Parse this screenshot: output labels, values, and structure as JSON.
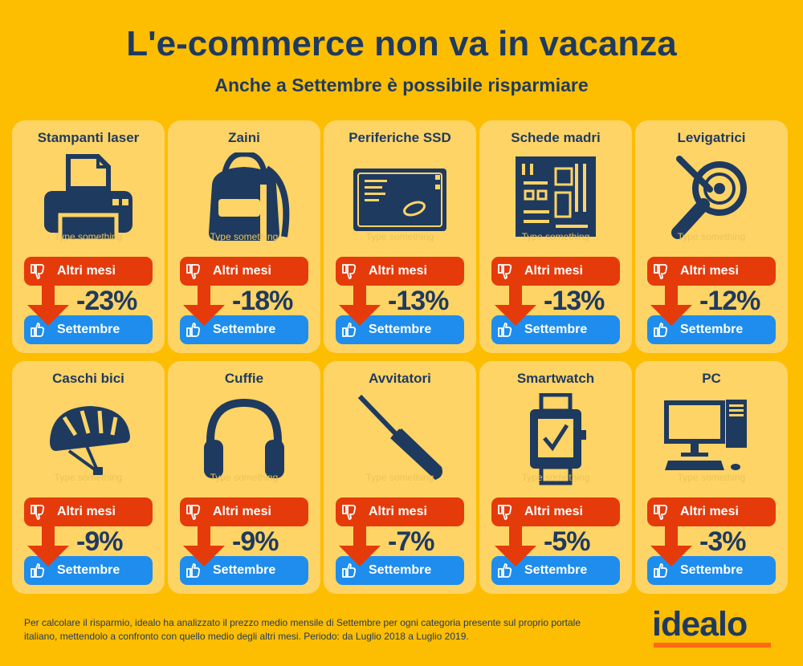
{
  "header": {
    "title": "L'e-commerce non va in vacanza",
    "subtitle": "Anche a Settembre è possibile risparmiare"
  },
  "labels": {
    "other_months": "Altri mesi",
    "september": "Settembre",
    "placeholder": "Type something"
  },
  "colors": {
    "background": "#FDBD00",
    "card": "#FED466",
    "red": "#E53B0B",
    "blue": "#1E8DED",
    "navy": "#1F3A5F",
    "logo_underline": "#FF6A13"
  },
  "cards": [
    {
      "title": "Stampanti laser",
      "saving": "-23%",
      "icon": "printer-icon"
    },
    {
      "title": "Zaini",
      "saving": "-18%",
      "icon": "backpack-icon"
    },
    {
      "title": "Periferiche SSD",
      "saving": "-13%",
      "icon": "ssd-icon"
    },
    {
      "title": "Schede madri",
      "saving": "-13%",
      "icon": "motherboard-icon"
    },
    {
      "title": "Levigatrici",
      "saving": "-12%",
      "icon": "sander-icon"
    },
    {
      "title": "Caschi bici",
      "saving": "-9%",
      "icon": "bike-helmet-icon"
    },
    {
      "title": "Cuffie",
      "saving": "-9%",
      "icon": "headphones-icon"
    },
    {
      "title": "Avvitatori",
      "saving": "-7%",
      "icon": "screwdriver-icon"
    },
    {
      "title": "Smartwatch",
      "saving": "-5%",
      "icon": "smartwatch-icon"
    },
    {
      "title": "PC",
      "saving": "-3%",
      "icon": "pc-icon"
    }
  ],
  "footnote": "Per calcolare il risparmio, idealo ha analizzato il prezzo medio mensile di Settembre per ogni categoria presente sul proprio portale italiano, mettendolo a confronto con quello medio degli altri mesi. Periodo: da Luglio 2018 a Luglio 2019.",
  "logo": "idealo"
}
